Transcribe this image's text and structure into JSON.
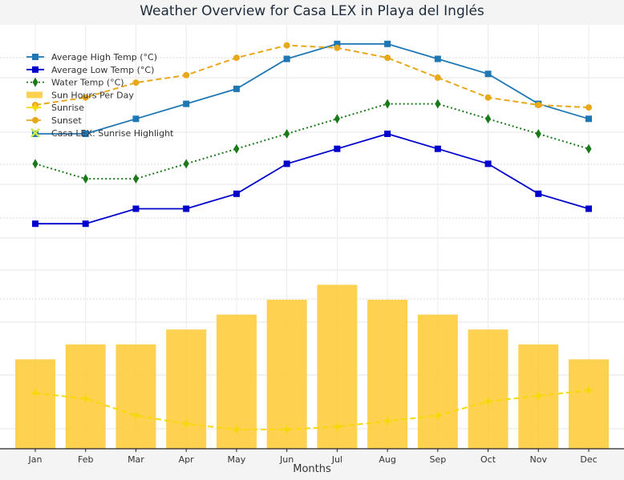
{
  "chart_data": {
    "type": "line",
    "title": "Weather Overview for Casa LEX in Playa del Inglés",
    "xlabel": "Months",
    "ylabel": "",
    "categories": [
      "Jan",
      "Feb",
      "Mar",
      "Apr",
      "May",
      "Jun",
      "Jul",
      "Aug",
      "Sep",
      "Oct",
      "Nov",
      "Dec"
    ],
    "grid": true,
    "legend_position": "top-left",
    "series": [
      {
        "name": "Average High Temp (°C)",
        "type": "line",
        "color": "#1f77b4",
        "marker": "square",
        "linestyle": "solid",
        "values": [
          21,
          21,
          22,
          23,
          24,
          26,
          27,
          27,
          26,
          25,
          23,
          22
        ]
      },
      {
        "name": "Average Low Temp (°C)",
        "type": "line",
        "color": "#0000cc",
        "marker": "square",
        "linestyle": "solid",
        "values": [
          15,
          15,
          16,
          16,
          17,
          19,
          20,
          21,
          20,
          19,
          17,
          16
        ]
      },
      {
        "name": "Water Temp (°C)",
        "type": "line",
        "color": "#1a7a1a",
        "marker": "diamond",
        "linestyle": "dotted",
        "values": [
          19,
          18,
          18,
          19,
          20,
          21,
          22,
          23,
          23,
          22,
          21,
          20
        ]
      },
      {
        "name": "Sun Hours Per Day",
        "type": "bar",
        "color": "#ffc933",
        "values": [
          6,
          7,
          7,
          8,
          9,
          10,
          11,
          10,
          9,
          8,
          7,
          6
        ]
      },
      {
        "name": "Sunrise",
        "type": "line",
        "color": "#f5d90a",
        "marker": "star",
        "linestyle": "dashed",
        "values": [
          7.8,
          7.6,
          7.0,
          6.7,
          6.5,
          6.5,
          6.6,
          6.8,
          7.0,
          7.5,
          7.7,
          7.9
        ]
      },
      {
        "name": "Sunset",
        "type": "line",
        "color": "#e8a81c",
        "marker": "circle",
        "linestyle": "dashed",
        "values": [
          18.5,
          18.8,
          19.4,
          19.7,
          20.4,
          20.9,
          20.8,
          20.4,
          19.6,
          18.8,
          18.5,
          18.4
        ]
      },
      {
        "name": "Casa LEX: Sunrise Highlight",
        "type": "marker",
        "color": "#c9e84a",
        "marker": "x",
        "values": []
      }
    ]
  }
}
